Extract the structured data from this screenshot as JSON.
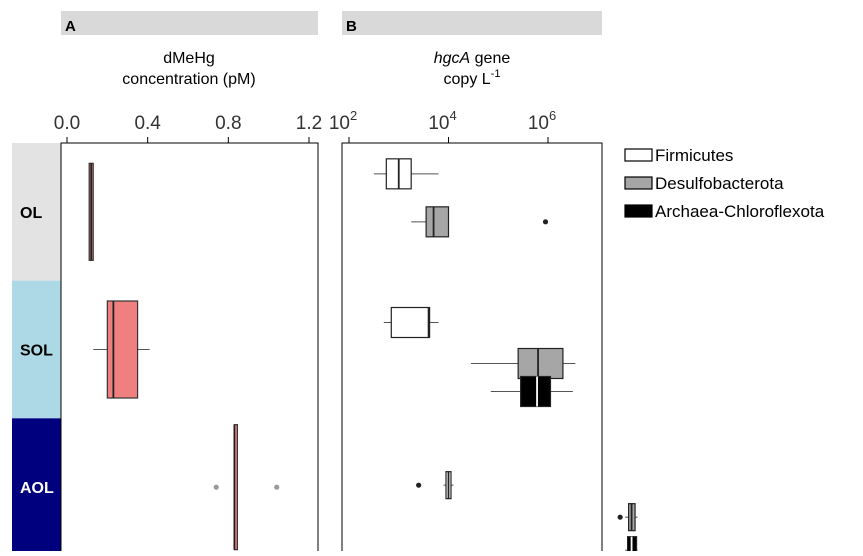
{
  "chart_data": [
    {
      "panel": "A",
      "type": "boxplot",
      "title_lines": [
        "dMeHg",
        "concentration (pM)"
      ],
      "xlim": [
        0.0,
        1.2
      ],
      "ticks": [
        0.0,
        0.4,
        0.8,
        1.2
      ],
      "tick_labels": [
        "0.0",
        "0.4",
        "0.8",
        "1.2"
      ],
      "categories": [
        "OL",
        "SOL",
        "AOL"
      ],
      "series": [
        {
          "color": "#f08080",
          "boxes": [
            {
              "category": "OL",
              "min": 0.11,
              "q1": 0.11,
              "median": 0.12,
              "q3": 0.13,
              "max": 0.13,
              "outliers": []
            },
            {
              "category": "SOL",
              "min": 0.13,
              "q1": 0.2,
              "median": 0.23,
              "q3": 0.35,
              "max": 0.41,
              "outliers": []
            },
            {
              "category": "AOL",
              "min": 0.83,
              "q1": 0.83,
              "median": 0.83,
              "q3": 0.84,
              "max": 0.84,
              "outliers": [
                0.74,
                1.04
              ]
            }
          ]
        }
      ]
    },
    {
      "panel": "B",
      "type": "boxplot",
      "title_italic": "hgcA",
      "title_rest": " gene",
      "title_line2": "copy L",
      "title_sup": "-1",
      "xscale": "log",
      "xlim_log10": [
        2,
        7.9
      ],
      "ticks_log10": [
        2,
        4,
        6
      ],
      "tick_base": "10",
      "tick_exponents": [
        "2",
        "4",
        "6"
      ],
      "categories": [
        "OL",
        "SOL",
        "AOL"
      ],
      "series": [
        {
          "name": "Firmicutes",
          "color": "#ffffff",
          "boxes": [
            {
              "category": "OL",
              "min": 2.5,
              "q1": 2.75,
              "median": 3.0,
              "q3": 3.25,
              "max": 3.8,
              "outliers": []
            },
            {
              "category": "SOL",
              "min": 2.7,
              "q1": 2.85,
              "median": 3.6,
              "q3": 3.62,
              "max": 3.8,
              "outliers": []
            },
            {
              "category": "AOL",
              "min": 3.9,
              "q1": 3.95,
              "median": 4.0,
              "q3": 4.05,
              "max": 4.1,
              "outliers": [
                3.4
              ]
            }
          ]
        },
        {
          "name": "Desulfobacterota",
          "color": "#a6a6a6",
          "boxes": [
            {
              "category": "OL",
              "min": 3.25,
              "q1": 3.55,
              "median": 3.7,
              "q3": 4.0,
              "max": 4.0,
              "outliers": [
                5.95
              ]
            },
            {
              "category": "SOL",
              "min": 4.45,
              "q1": 5.4,
              "median": 5.8,
              "q3": 6.3,
              "max": 6.55,
              "outliers": []
            },
            {
              "category": "AOL",
              "min": 7.55,
              "q1": 7.62,
              "median": 7.68,
              "q3": 7.75,
              "max": 7.8,
              "outliers": [
                7.45
              ]
            }
          ]
        },
        {
          "name": "Archaea-Chloroflexota",
          "color": "#000000",
          "boxes": [
            {
              "category": "SOL",
              "min": 4.85,
              "q1": 5.45,
              "median": 5.78,
              "q3": 6.05,
              "max": 6.5,
              "outliers": []
            },
            {
              "category": "AOL",
              "min": 7.55,
              "q1": 7.6,
              "median": 7.68,
              "q3": 7.78,
              "max": 7.8,
              "outliers": []
            }
          ]
        }
      ],
      "legend": [
        "Firmicutes",
        "Desulfobacterota",
        "Archaea-Chloroflexota"
      ],
      "legend_position": "right"
    }
  ],
  "row_labels": [
    "OL",
    "SOL",
    "AOL"
  ],
  "row_colors": [
    "#e3e3e3",
    "#add8e6",
    "#00007f"
  ],
  "row_label_colors": [
    "#000000",
    "#000000",
    "#ffffff"
  ],
  "panel_header_color": "#d9d9d9"
}
